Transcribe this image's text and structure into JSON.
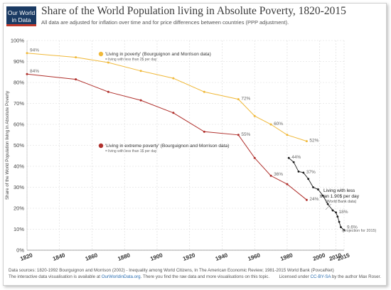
{
  "header": {
    "logo_line1": "Our World",
    "logo_line2": "in Data",
    "title": "Share of the World Population living in Absolute Poverty, 1820-2015",
    "subtitle": "All data are adjusted for inflation over time and for price differences between countries (PPP adjustment)."
  },
  "footer": {
    "sources": "Data sources: 1820-1992 Bourguignon and Morrison (2002) - Inequality among World Citizens, In The American Economic Review; 1981-2015 World Bank (PovcalNet)",
    "vis_prefix": "The interactive data visualisation is available at ",
    "vis_link": "OurWorldinData.org",
    "vis_suffix": ". There you find the raw data and more visualisations on this topic.",
    "license_prefix": "Licensed under ",
    "license_link": "CC-BY-SA",
    "license_suffix": " by the author Max Roser."
  },
  "chart_data": {
    "type": "line",
    "ylabel": "Share of the World Population living in Absolute Poverty",
    "xlim": [
      1820,
      2015
    ],
    "ylim": [
      0,
      100
    ],
    "x_ticks": [
      1820,
      1840,
      1860,
      1880,
      1900,
      1920,
      1940,
      1960,
      1980,
      2000,
      2010,
      2015
    ],
    "y_ticks": [
      "0%",
      "10%",
      "20%",
      "30%",
      "40%",
      "50%",
      "60%",
      "70%",
      "80%",
      "90%",
      "100%"
    ],
    "grid": true,
    "colors": {
      "poverty": "#f0b93a",
      "extreme": "#b0302c",
      "worldbank": "#1a1a1a"
    },
    "series": [
      {
        "key": "poverty",
        "legend": "'Living in poverty' (Bourguignon and Morrison data)",
        "legend_sub": "= living with less than 2$ per day",
        "x": [
          1820,
          1850,
          1870,
          1890,
          1910,
          1929,
          1950,
          1960,
          1970,
          1980,
          1992
        ],
        "y": [
          94,
          92,
          89.5,
          85.5,
          82,
          75.5,
          72,
          64,
          60,
          55,
          52
        ],
        "labels": [
          {
            "x": 1820,
            "y": 94,
            "text": "94%",
            "pos": "right-above"
          },
          {
            "x": 1950,
            "y": 72,
            "text": "72%",
            "pos": "right"
          },
          {
            "x": 1970,
            "y": 60,
            "text": "60%",
            "pos": "right"
          },
          {
            "x": 1992,
            "y": 52,
            "text": "52%",
            "pos": "right"
          }
        ]
      },
      {
        "key": "extreme",
        "legend": "'Living in extreme poverty' (Bourguignon and Morrison data)",
        "legend_sub": "= living with less than 1$ per day",
        "x": [
          1820,
          1850,
          1870,
          1890,
          1910,
          1929,
          1950,
          1960,
          1970,
          1980,
          1992
        ],
        "y": [
          84,
          81.5,
          75.5,
          71.5,
          65.5,
          56.5,
          55,
          44,
          35.5,
          31.5,
          24
        ],
        "labels": [
          {
            "x": 1820,
            "y": 84,
            "text": "84%",
            "pos": "right-above"
          },
          {
            "x": 1950,
            "y": 55,
            "text": "55%",
            "pos": "right"
          },
          {
            "x": 1970,
            "y": 36,
            "text": "36%",
            "pos": "right"
          },
          {
            "x": 1992,
            "y": 24,
            "text": "24%",
            "pos": "right"
          }
        ]
      },
      {
        "key": "worldbank",
        "legend": "Living with less",
        "legend_line2": "than 1.90$ per day",
        "legend_sub": "(World Bank data)",
        "x": [
          1981,
          1984,
          1987,
          1990,
          1993,
          1996,
          1999,
          2002,
          2005,
          2008,
          2010,
          2011,
          2012,
          2013,
          2015
        ],
        "y": [
          44,
          42,
          37.5,
          37,
          34,
          30,
          29,
          26,
          22,
          19,
          18,
          16,
          13.5,
          11,
          9.6
        ],
        "labels": [
          {
            "x": 1981,
            "y": 44,
            "text": "44%",
            "pos": "right"
          },
          {
            "x": 1990,
            "y": 37,
            "text": "37%",
            "pos": "right"
          },
          {
            "x": 2010,
            "y": 18,
            "text": "18%",
            "pos": "right"
          },
          {
            "x": 2015,
            "y": 9.6,
            "text": "9.6%",
            "pos": "right-above"
          }
        ],
        "projection_note": "(projection for 2015)"
      }
    ]
  }
}
